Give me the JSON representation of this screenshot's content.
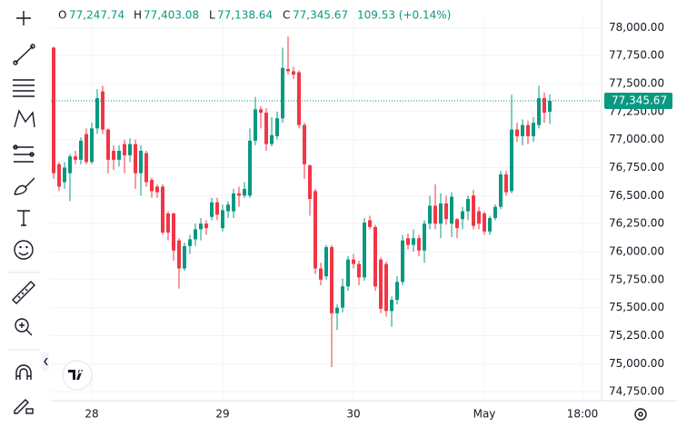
{
  "chart_data": {
    "type": "candlestick",
    "header": {
      "open_label": "O",
      "open": "77,247.74",
      "high_label": "H",
      "high": "77,403.08",
      "low_label": "L",
      "low": "77,138.64",
      "close_label": "C",
      "close": "77,345.67",
      "change": "109.53 (+0.14%)"
    },
    "last_price_label": "77,345.67",
    "up_color": "#089981",
    "down_color": "#f23645",
    "open": [
      77820,
      76780,
      76620,
      76700,
      76850,
      76820,
      77050,
      76800,
      77100,
      77430,
      77090,
      76900,
      76820,
      76960,
      76860,
      76960,
      76700,
      76880,
      76640,
      76580,
      76580,
      76340,
      76340,
      76100,
      75850,
      76050,
      76110,
      76200,
      76250,
      76310,
      76440,
      76210,
      76360,
      76360,
      76520,
      76500,
      76500,
      76990,
      77270,
      77240,
      76960,
      77030,
      77190,
      77630,
      77610,
      77600,
      77130,
      76770,
      76540,
      75850,
      75780,
      76040,
      75450,
      75500,
      75690,
      75930,
      75890,
      75770,
      76280,
      76220,
      75930,
      75890,
      75470,
      75570,
      75730,
      76120,
      76060,
      76120,
      76010,
      76250,
      76410,
      76250,
      76430,
      76250,
      76290,
      76290,
      76360,
      76500,
      76360,
      76340,
      76180,
      76300,
      76400,
      76690,
      76540,
      77090,
      77030,
      77130,
      77030,
      77130,
      77370,
      77247.74
    ],
    "high": [
      77830,
      76800,
      76800,
      76870,
      76900,
      77020,
      77100,
      77150,
      77450,
      77480,
      77100,
      76950,
      76950,
      77000,
      77010,
      77000,
      76950,
      76900,
      76660,
      76600,
      76600,
      76360,
      76350,
      76120,
      76080,
      76150,
      76250,
      76300,
      76280,
      76480,
      76480,
      76420,
      76450,
      76560,
      76580,
      76620,
      77100,
      77380,
      77300,
      77280,
      77200,
      77250,
      77820,
      77920,
      77650,
      77620,
      77150,
      76780,
      76560,
      75900,
      76060,
      76060,
      75530,
      75760,
      75960,
      75980,
      75920,
      76300,
      76320,
      76240,
      75950,
      75910,
      75600,
      75780,
      76150,
      76160,
      76200,
      76150,
      76280,
      76500,
      76600,
      76520,
      76500,
      76530,
      76300,
      76400,
      76500,
      76550,
      76400,
      76360,
      76320,
      76420,
      76720,
      76720,
      77400,
      77150,
      77180,
      77170,
      77200,
      77480,
      77420,
      77403.08
    ],
    "low": [
      76650,
      76540,
      76560,
      76450,
      76780,
      76780,
      76780,
      76780,
      77050,
      77050,
      76700,
      76730,
      76760,
      76700,
      76800,
      76560,
      76500,
      76580,
      76480,
      76480,
      76150,
      76100,
      75920,
      75670,
      75830,
      75980,
      76050,
      76100,
      76150,
      76280,
      76280,
      76180,
      76300,
      76300,
      76400,
      76480,
      76480,
      76950,
      77100,
      76900,
      76940,
      77000,
      77150,
      77580,
      77540,
      77100,
      76650,
      76320,
      75800,
      75700,
      75750,
      74970,
      75300,
      75460,
      75650,
      75850,
      75700,
      75740,
      76200,
      75650,
      75450,
      75420,
      75330,
      75530,
      75700,
      76020,
      76000,
      75960,
      75900,
      76200,
      76200,
      76120,
      76240,
      76130,
      76120,
      76200,
      76280,
      76200,
      76200,
      76150,
      76150,
      76280,
      76380,
      76500,
      76520,
      76980,
      76950,
      76960,
      76980,
      77100,
      77150,
      77138.64
    ],
    "close": [
      76700,
      76580,
      76750,
      76850,
      76820,
      76990,
      76800,
      77100,
      77370,
      77090,
      76820,
      76820,
      76900,
      76860,
      76960,
      76700,
      76900,
      76620,
      76540,
      76530,
      76170,
      76170,
      76010,
      75850,
      76050,
      76110,
      76200,
      76250,
      76210,
      76440,
      76330,
      76370,
      76420,
      76520,
      76500,
      76560,
      76990,
      77270,
      77240,
      76960,
      77040,
      77190,
      77640,
      77610,
      77580,
      77130,
      76780,
      76470,
      75850,
      75750,
      76040,
      75450,
      75500,
      75690,
      75930,
      75890,
      75770,
      76260,
      76220,
      75690,
      75490,
      75470,
      75570,
      75730,
      76100,
      76060,
      76120,
      76010,
      76250,
      76410,
      76250,
      76430,
      76290,
      76490,
      76210,
      76360,
      76470,
      76230,
      76250,
      76180,
      76300,
      76400,
      76690,
      76530,
      77090,
      77030,
      77130,
      77030,
      77150,
      77370,
      77240,
      77345.67
    ],
    "xlim": [
      -0.5,
      100.5
    ],
    "xticks": [
      {
        "value": 7,
        "label": "28"
      },
      {
        "value": 31,
        "label": "29"
      },
      {
        "value": 55,
        "label": "30"
      },
      {
        "value": 79,
        "label": "May"
      },
      {
        "value": 97,
        "label": "18:00"
      }
    ],
    "ylim": [
      74670,
      78100
    ],
    "yticks": [
      {
        "value": 74750,
        "label": "74,750.00"
      },
      {
        "value": 75000,
        "label": "75,000.00"
      },
      {
        "value": 75250,
        "label": "75,250.00"
      },
      {
        "value": 75500,
        "label": "75,500.00"
      },
      {
        "value": 75750,
        "label": "75,750.00"
      },
      {
        "value": 76000,
        "label": "76,000.00"
      },
      {
        "value": 76250,
        "label": "76,250.00"
      },
      {
        "value": 76500,
        "label": "76,500.00"
      },
      {
        "value": 76750,
        "label": "76,750.00"
      },
      {
        "value": 77000,
        "label": "77,000.00"
      },
      {
        "value": 77250,
        "label": "77,250.00"
      },
      {
        "value": 77500,
        "label": "77,500.00"
      },
      {
        "value": 77750,
        "label": "77,750.00"
      },
      {
        "value": 78000,
        "label": "78,000.00"
      }
    ],
    "grid": true
  }
}
